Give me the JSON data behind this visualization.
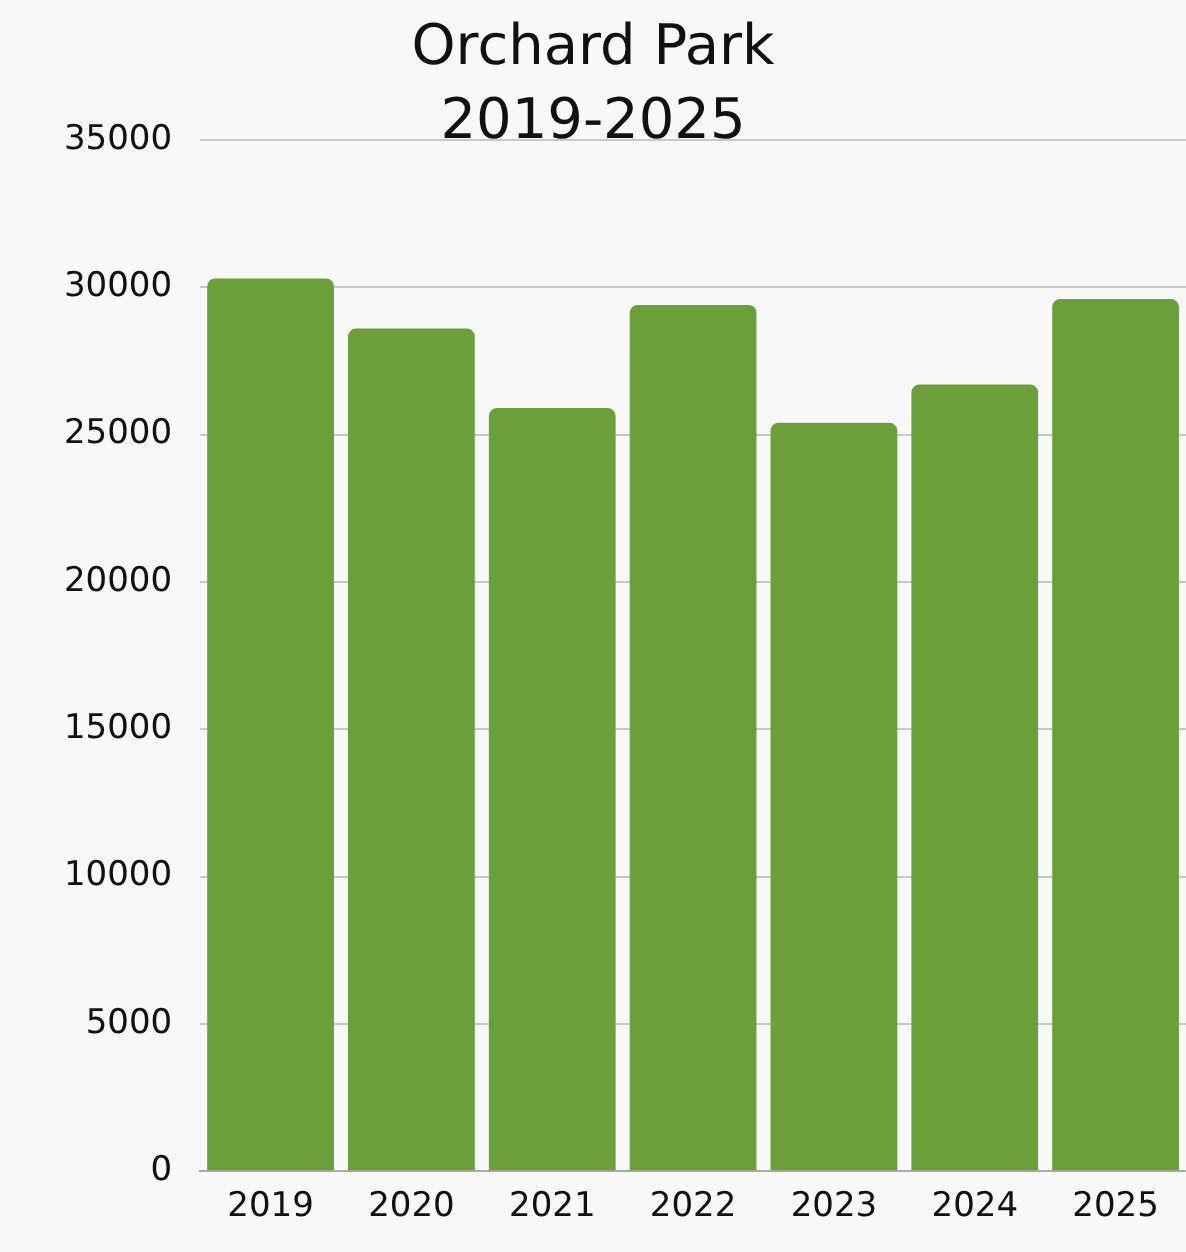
{
  "chart_data": {
    "type": "bar",
    "title": "Orchard Park 2019-2025",
    "categories": [
      "2019",
      "2020",
      "2021",
      "2022",
      "2023",
      "2024",
      "2025"
    ],
    "values": [
      30300,
      28600,
      25900,
      29400,
      25400,
      26700,
      29600
    ],
    "color": "#6a9f3a",
    "ylim": [
      0,
      35000
    ],
    "yticks": [
      0,
      5000,
      10000,
      15000,
      20000,
      25000,
      30000,
      35000
    ],
    "grid": "y"
  }
}
